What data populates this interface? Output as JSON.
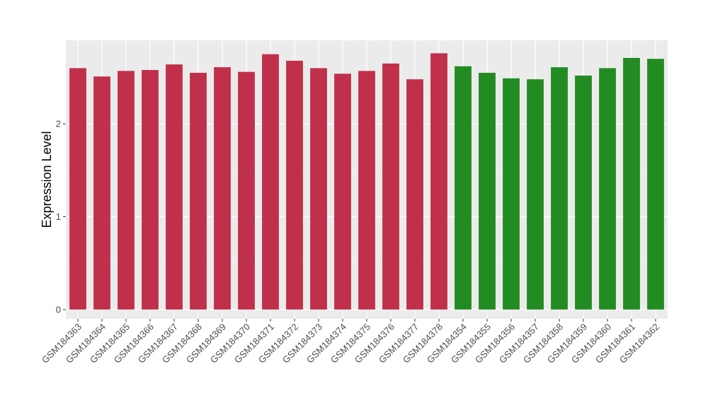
{
  "chart_data": {
    "type": "bar",
    "ylabel": "Expression Level",
    "xlabel": "",
    "ylim": [
      -0.1,
      2.9
    ],
    "yticks": [
      0,
      1,
      2
    ],
    "grid": true,
    "legend": "none",
    "panel_background": "#ebebeb",
    "categories": [
      "GSM184363",
      "GSM184364",
      "GSM184365",
      "GSM184366",
      "GSM184367",
      "GSM184368",
      "GSM184369",
      "GSM184370",
      "GSM184371",
      "GSM184372",
      "GSM184373",
      "GSM184374",
      "GSM184375",
      "GSM184376",
      "GSM184377",
      "GSM184378",
      "GSM184354",
      "GSM184355",
      "GSM184356",
      "GSM184357",
      "GSM184358",
      "GSM184359",
      "GSM184360",
      "GSM184361",
      "GSM184362"
    ],
    "values": [
      2.6,
      2.51,
      2.57,
      2.58,
      2.64,
      2.55,
      2.61,
      2.56,
      2.75,
      2.68,
      2.6,
      2.54,
      2.57,
      2.65,
      2.48,
      2.76,
      2.62,
      2.55,
      2.49,
      2.48,
      2.61,
      2.52,
      2.6,
      2.71,
      2.7
    ],
    "colors": [
      "#c0304a",
      "#c0304a",
      "#c0304a",
      "#c0304a",
      "#c0304a",
      "#c0304a",
      "#c0304a",
      "#c0304a",
      "#c0304a",
      "#c0304a",
      "#c0304a",
      "#c0304a",
      "#c0304a",
      "#c0304a",
      "#c0304a",
      "#c0304a",
      "#228b22",
      "#228b22",
      "#228b22",
      "#228b22",
      "#228b22",
      "#228b22",
      "#228b22",
      "#228b22",
      "#228b22"
    ]
  }
}
